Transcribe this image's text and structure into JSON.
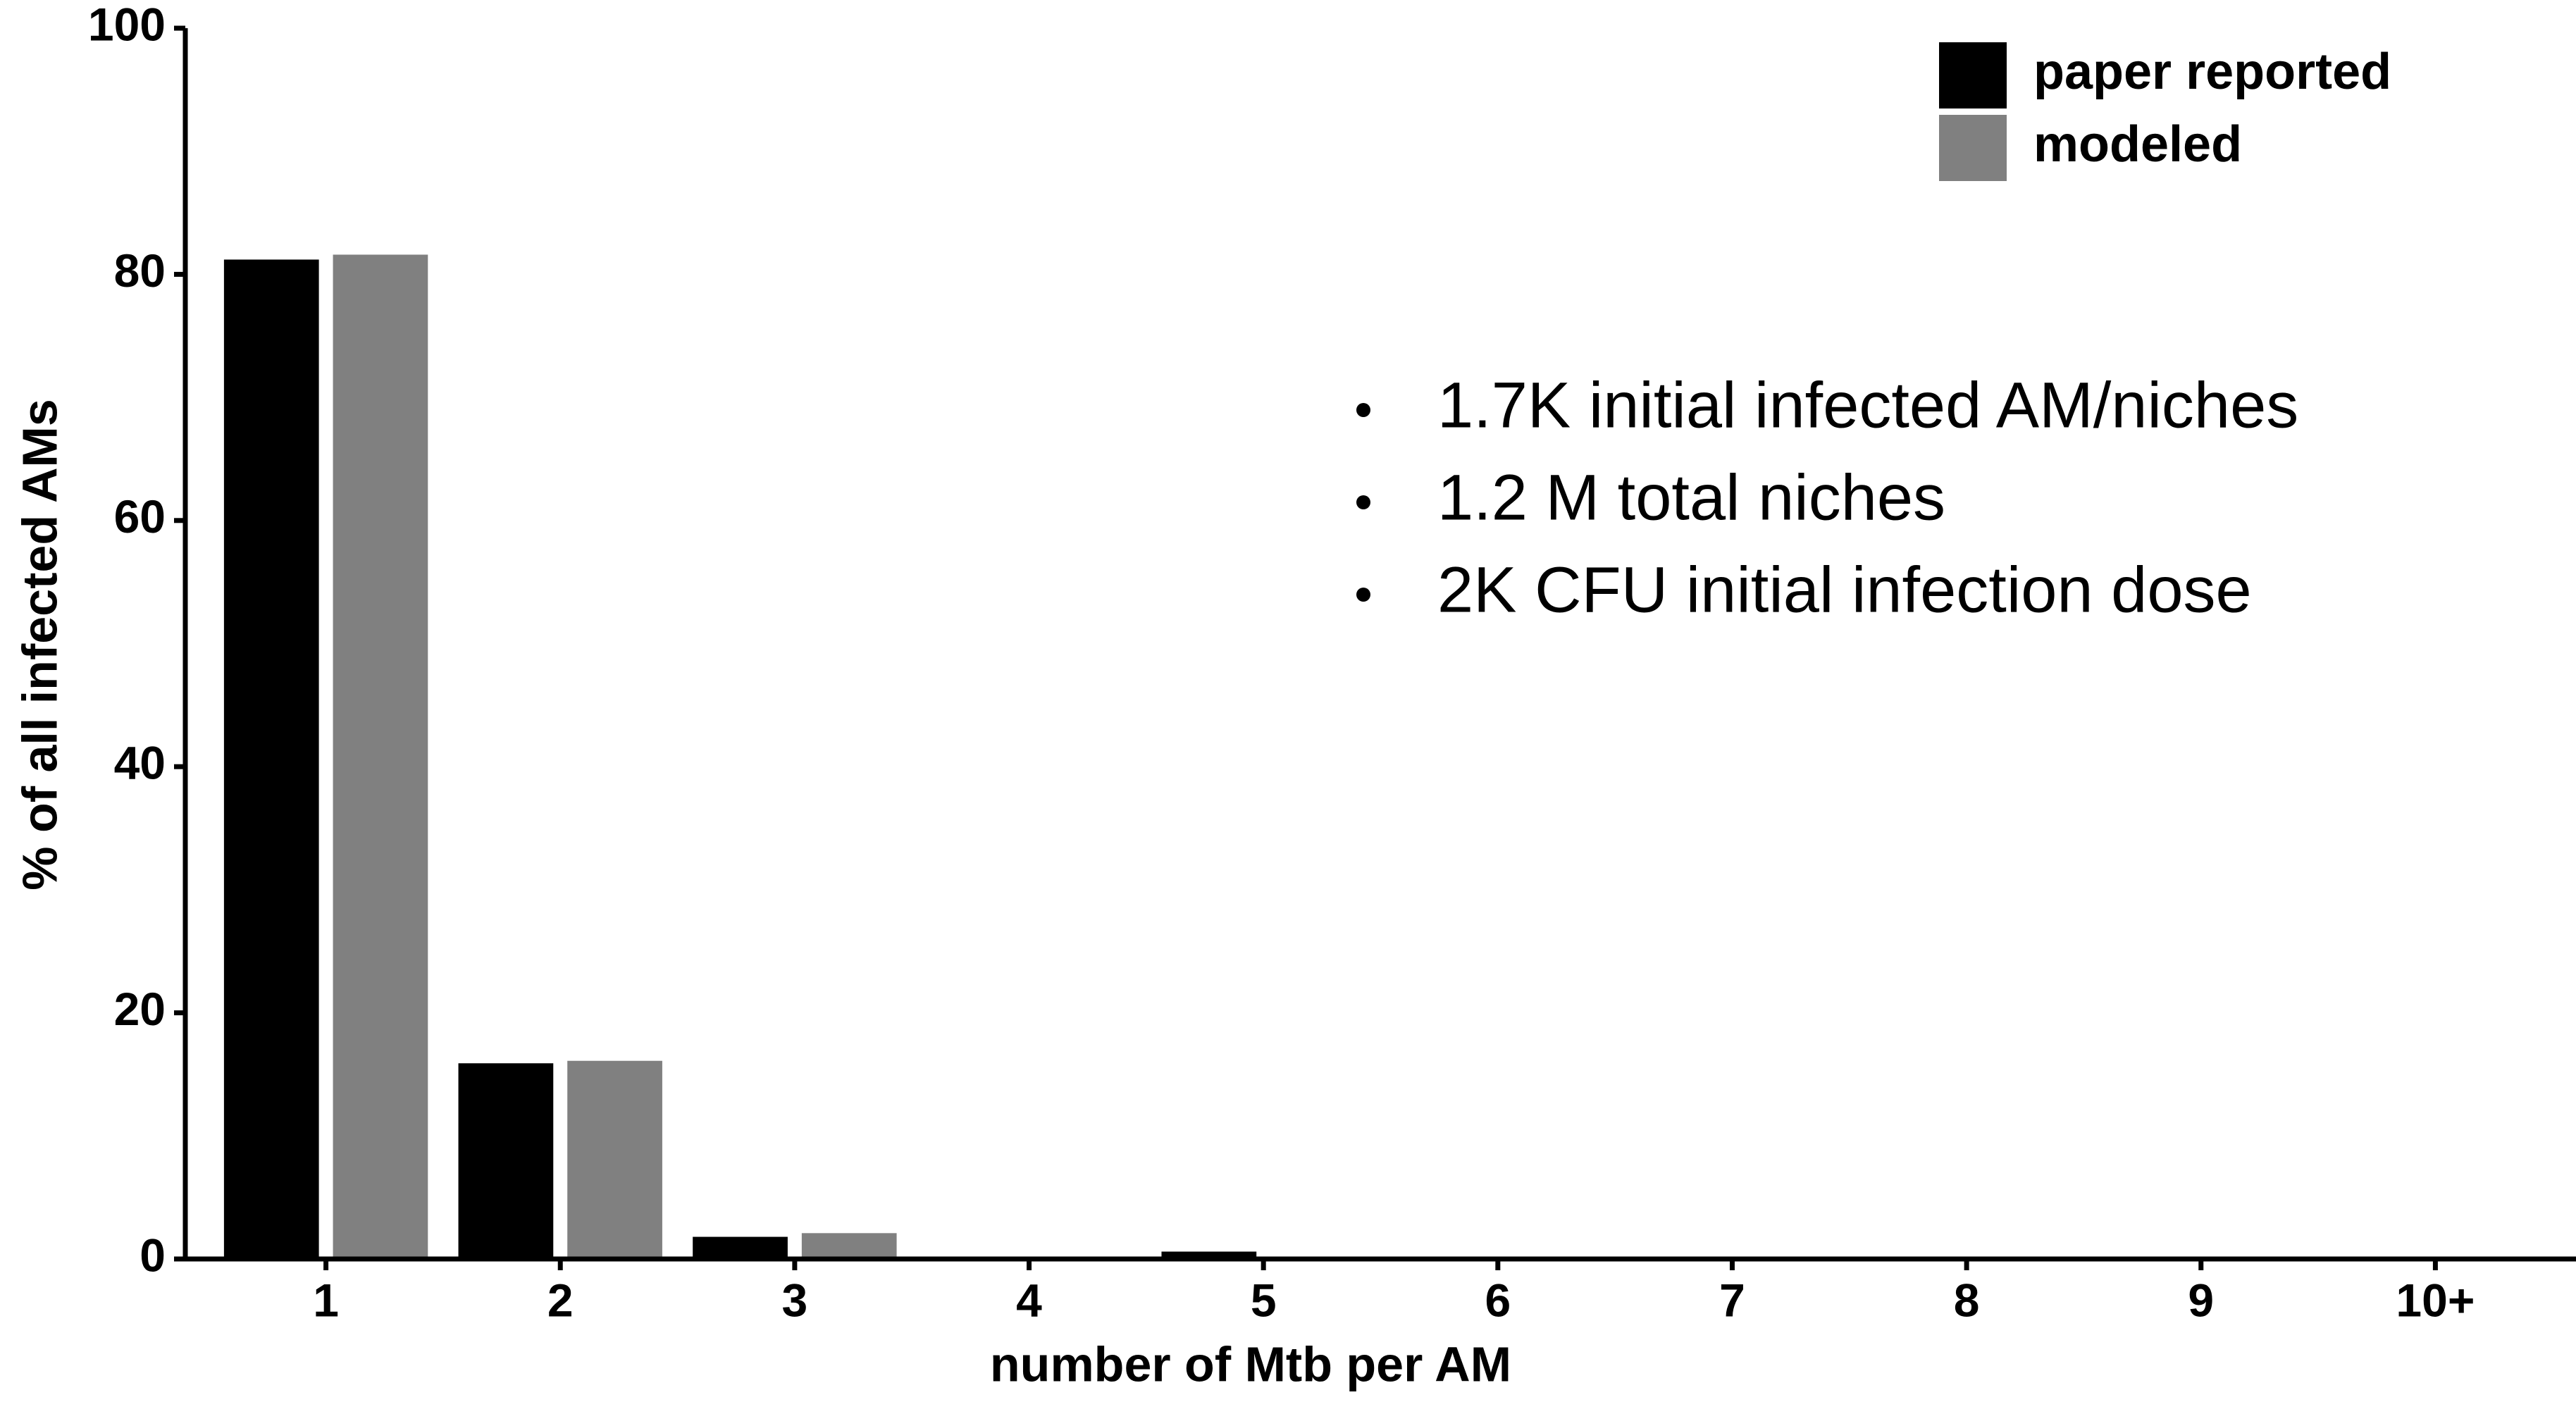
{
  "chart_data": {
    "type": "bar",
    "x_label": "number of Mtb per AM",
    "y_label": "% of all infected AMs",
    "categories": [
      "1",
      "2",
      "3",
      "4",
      "5",
      "6",
      "7",
      "8",
      "9",
      "10+"
    ],
    "series": [
      {
        "name": "paper reported",
        "color": "#000000",
        "values": [
          81.2,
          15.9,
          1.8,
          0,
          0.6,
          0,
          0,
          0,
          0,
          0
        ]
      },
      {
        "name": "modeled",
        "color": "#808080",
        "values": [
          81.6,
          16.1,
          2.1,
          0,
          0,
          0,
          0,
          0,
          0,
          0
        ]
      }
    ],
    "ylim": [
      0,
      100
    ],
    "yticks": [
      0,
      20,
      40,
      60,
      80,
      100
    ],
    "legend": "top-right",
    "annotations": [
      "1.7K initial infected AM/niches",
      "1.2 M total niches",
      "2K CFU initial infection dose"
    ]
  }
}
